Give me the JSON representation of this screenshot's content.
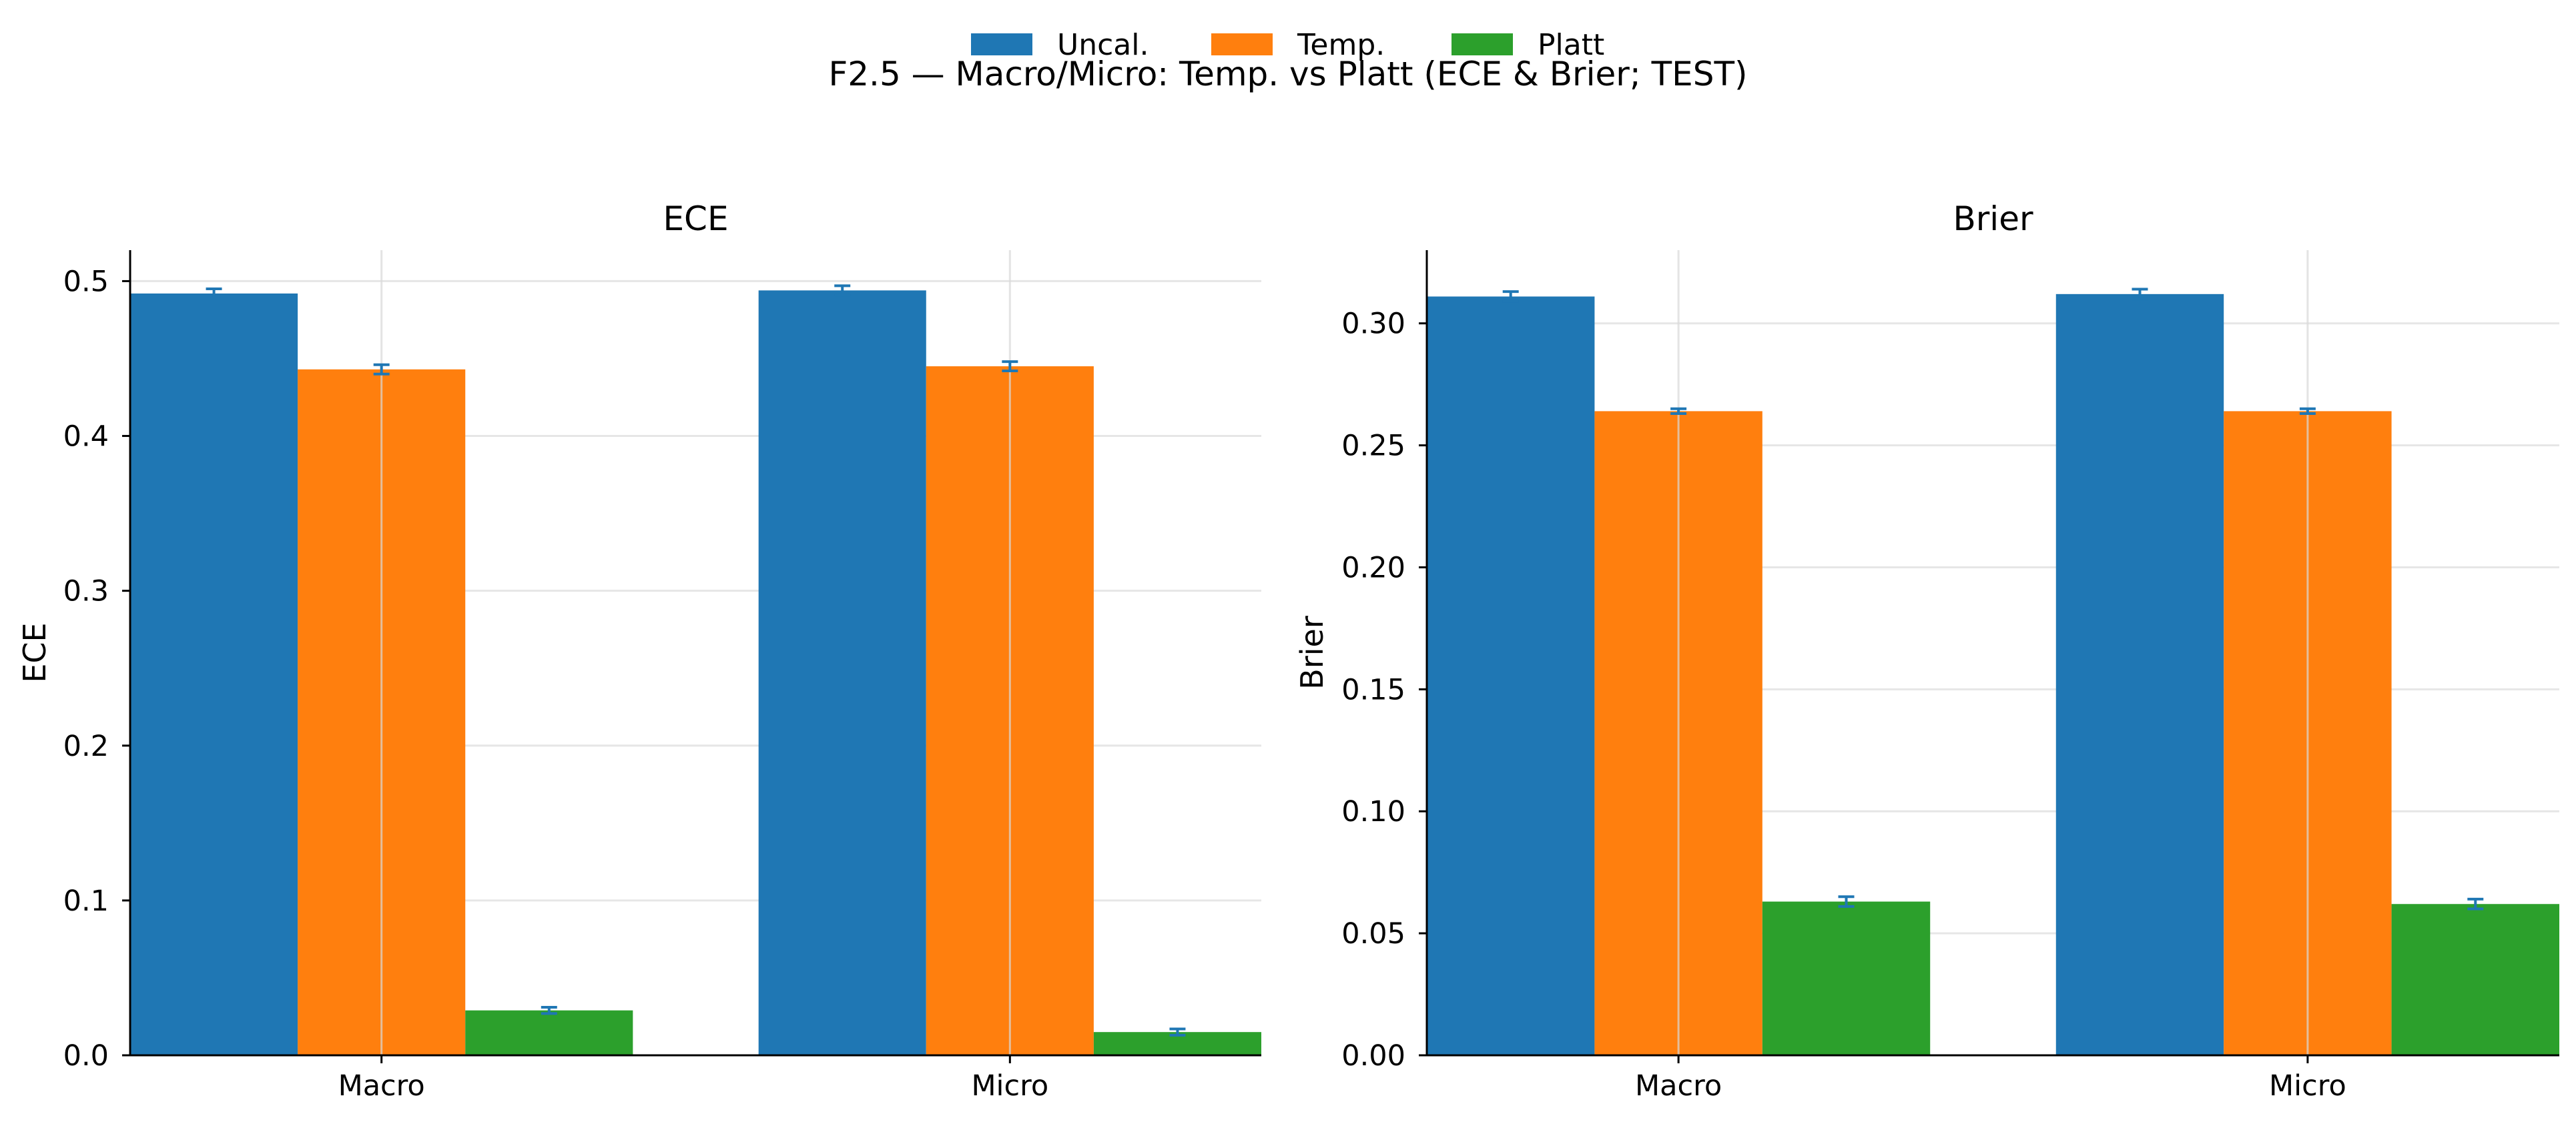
{
  "figure": {
    "title": "F2.5 — Macro/Micro: Temp. vs Platt (ECE & Brier; TEST)"
  },
  "legend": {
    "placement": "top-center",
    "entries": [
      {
        "label": "Uncal.",
        "color": "#1f77b4"
      },
      {
        "label": "Temp.",
        "color": "#ff7f0e"
      },
      {
        "label": "Platt",
        "color": "#2ca02c"
      }
    ]
  },
  "chart_data": [
    {
      "type": "bar",
      "title": "ECE",
      "xlabel": "",
      "ylabel": "ECE",
      "categories": [
        "Macro",
        "Micro"
      ],
      "ylim": [
        0,
        0.52
      ],
      "yticks": [
        0.0,
        0.1,
        0.2,
        0.3,
        0.4,
        0.5
      ],
      "ytick_labels": [
        "0.0",
        "0.1",
        "0.2",
        "0.3",
        "0.4",
        "0.5"
      ],
      "grid": true,
      "series": [
        {
          "name": "Uncal.",
          "values": [
            0.492,
            0.494
          ],
          "errors": [
            0.003,
            0.003
          ]
        },
        {
          "name": "Temp.",
          "values": [
            0.443,
            0.445
          ],
          "errors": [
            0.003,
            0.003
          ]
        },
        {
          "name": "Platt",
          "values": [
            0.029,
            0.015
          ],
          "errors": [
            0.002,
            0.002
          ]
        }
      ]
    },
    {
      "type": "bar",
      "title": "Brier",
      "xlabel": "",
      "ylabel": "Brier",
      "categories": [
        "Macro",
        "Micro"
      ],
      "ylim": [
        0,
        0.33
      ],
      "yticks": [
        0.0,
        0.05,
        0.1,
        0.15,
        0.2,
        0.25,
        0.3
      ],
      "ytick_labels": [
        "0.00",
        "0.05",
        "0.10",
        "0.15",
        "0.20",
        "0.25",
        "0.30"
      ],
      "grid": true,
      "series": [
        {
          "name": "Uncal.",
          "values": [
            0.311,
            0.312
          ],
          "errors": [
            0.002,
            0.002
          ]
        },
        {
          "name": "Temp.",
          "values": [
            0.264,
            0.264
          ],
          "errors": [
            0.001,
            0.001
          ]
        },
        {
          "name": "Platt",
          "values": [
            0.063,
            0.062
          ],
          "errors": [
            0.002,
            0.002
          ]
        }
      ]
    }
  ]
}
